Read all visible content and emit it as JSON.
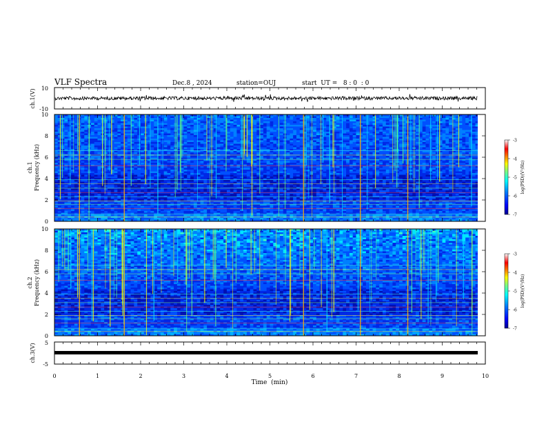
{
  "header": {
    "title": "VLF Spectra",
    "date": "Dec.8 , 2024",
    "station": "station=OUJ",
    "start_ut": "start  UT =   8 : 0  : 0"
  },
  "colors": {
    "spectrogram_scale": [
      "#00008f",
      "#0000ff",
      "#007fff",
      "#00ffff",
      "#7fff7f",
      "#ffff00",
      "#ff7f00",
      "#ff0000",
      "#ffffff"
    ]
  },
  "chart_data": [
    {
      "type": "line",
      "ylabel": "ch.1(V)",
      "ylim": [
        -10,
        10
      ],
      "y_ticks": [
        "10",
        "-10"
      ],
      "xlim": [
        0,
        10
      ],
      "description_values": {
        "baseline": 0,
        "noise_amplitude": 1
      }
    },
    {
      "type": "heatmap",
      "ylabel_line1": "ch.1",
      "ylabel_line2": "Frequency  (kHz)",
      "y_ticks": [
        "0",
        "2",
        "4",
        "6",
        "8",
        "10"
      ],
      "ylim": [
        0,
        10
      ],
      "xlim": [
        0,
        10
      ],
      "colorbar": {
        "label": "log(PSD)(V²/Hz)",
        "ticks": [
          "-3",
          "-4",
          "-5",
          "-6",
          "-7"
        ],
        "range": [
          -7,
          -3
        ]
      }
    },
    {
      "type": "heatmap",
      "ylabel_line1": "ch.2",
      "ylabel_line2": "Frequency  (kHz)",
      "y_ticks": [
        "0",
        "2",
        "4",
        "6",
        "8",
        "10"
      ],
      "ylim": [
        0,
        10
      ],
      "xlim": [
        0,
        10
      ],
      "colorbar": {
        "label": "log(PSD)(V²/Hz)",
        "ticks": [
          "-3",
          "-4",
          "-5",
          "-6",
          "-7"
        ],
        "range": [
          -7,
          -3
        ]
      }
    },
    {
      "type": "line",
      "ylabel": "ch.3(V)",
      "ylim": [
        -5,
        5
      ],
      "y_ticks": [
        "5",
        "-5"
      ],
      "xlim": [
        0,
        10
      ],
      "description_values": {
        "baseline": 0
      }
    }
  ],
  "xaxis": {
    "label": "Time  (min)",
    "ticks": [
      "0",
      "1",
      "2",
      "3",
      "4",
      "5",
      "6",
      "7",
      "8",
      "9",
      "10"
    ]
  }
}
